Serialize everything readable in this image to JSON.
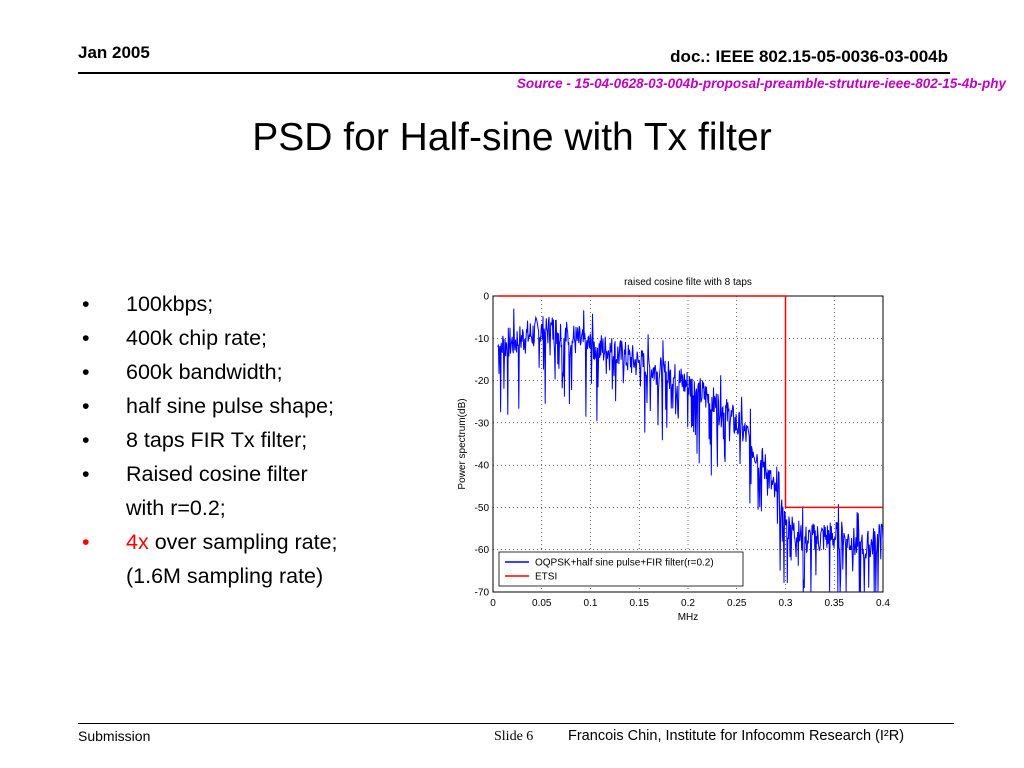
{
  "header": {
    "date": "Jan 2005",
    "doc_id": "doc.: IEEE 802.15-05-0036-03-004b",
    "source": "Source - 15-04-0628-03-004b-proposal-preamble-struture-ieee-802-15-4b-phy"
  },
  "slide": {
    "title": "PSD for Half-sine with Tx filter",
    "bullets": [
      {
        "bullet": "•",
        "lines": [
          "100kbps;"
        ]
      },
      {
        "bullet": "•",
        "lines": [
          "400k chip rate;"
        ]
      },
      {
        "bullet": "•",
        "lines": [
          "600k bandwidth;"
        ]
      },
      {
        "bullet": "•",
        "lines": [
          "half sine pulse shape;"
        ]
      },
      {
        "bullet": "•",
        "lines": [
          "8 taps FIR Tx filter;"
        ]
      },
      {
        "bullet": "•",
        "lines": [
          "Raised cosine filter",
          "with r=0.2;"
        ]
      },
      {
        "bullet": "•",
        "highlight": "4x",
        "lines": [
          " over sampling rate;",
          "(1.6M sampling rate)"
        ],
        "bullet_color": "#ff0000"
      }
    ]
  },
  "chart_data": {
    "type": "line",
    "title": "raised cosine filte with 8 taps",
    "xlabel": "MHz",
    "ylabel": "Power spectrum(dB)",
    "xlim": [
      0,
      0.4
    ],
    "ylim": [
      -70,
      0
    ],
    "grid": true,
    "legend_position": "bottom-left",
    "x_ticks": [
      "0",
      "0.05",
      "0.1",
      "0.15",
      "0.2",
      "0.25",
      "0.3",
      "0.35",
      "0.4"
    ],
    "y_ticks": [
      "0",
      "-10",
      "-20",
      "-30",
      "-40",
      "-50",
      "-60",
      "-70"
    ],
    "series": [
      {
        "name": "OQPSK+half sine pulse+FIR filter(r=0.2)",
        "color": "#0000ff",
        "x": [
          0.005,
          0.02,
          0.04,
          0.06,
          0.08,
          0.1,
          0.12,
          0.14,
          0.16,
          0.18,
          0.2,
          0.22,
          0.24,
          0.26,
          0.28,
          0.3,
          0.32,
          0.34,
          0.36,
          0.38,
          0.4
        ],
        "y": [
          -12,
          -11,
          -9,
          -8,
          -10,
          -12,
          -13,
          -15,
          -17,
          -19,
          -21,
          -24,
          -28,
          -33,
          -41,
          -54,
          -58,
          -57,
          -57,
          -60,
          -57
        ]
      },
      {
        "name": "ETSI",
        "color": "#ff0000",
        "x": [
          0.005,
          0.3,
          0.3,
          0.4
        ],
        "y": [
          0,
          0,
          -50,
          -50
        ]
      }
    ]
  },
  "footer": {
    "submission": "Submission",
    "slide_label": "Slide 6",
    "author": "Francois Chin, Institute for Infocomm Research (I²R)"
  }
}
